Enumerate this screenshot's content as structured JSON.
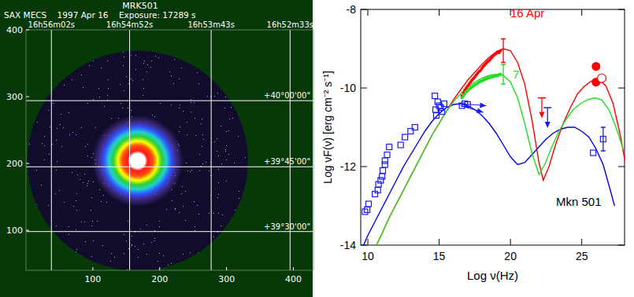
{
  "chart_data": [
    {
      "type": "image",
      "title": "MRK501",
      "subtitle": "SAX MECS    1997 Apr 16    Exposure: 17289 s",
      "xlim": [
        0,
        430
      ],
      "ylim": [
        40,
        400
      ],
      "xticks": [
        100,
        200,
        300,
        400
      ],
      "yticks": [
        100,
        200,
        300,
        400
      ],
      "grid": true,
      "ra_grid": [
        {
          "value": 38,
          "label": "16h56m02s"
        },
        {
          "value": 155,
          "label": "16h54m52s"
        },
        {
          "value": 277,
          "label": "16h53m43s"
        },
        {
          "value": 395,
          "label": "16h52m33s"
        }
      ],
      "dec_grid": [
        {
          "value": 294,
          "label": "+40°00'00\""
        },
        {
          "value": 195,
          "label": "+39°45'00\""
        },
        {
          "value": 98,
          "label": "+39°30'00\""
        }
      ],
      "source": {
        "x": 167,
        "y": 204
      },
      "field_radius": 165
    },
    {
      "type": "scatter",
      "xlabel": "Log ν(Hz)",
      "ylabel": "Log νF(ν) [erg cm⁻² s⁻¹]",
      "annotations": [
        "Mkn 501"
      ],
      "xlim": [
        9.5,
        28
      ],
      "ylim": [
        -14,
        -8
      ],
      "xticks": [
        10,
        15,
        20,
        25
      ],
      "yticks": [
        -14,
        -12,
        -10,
        -8
      ],
      "series": [
        {
          "type": "scatter",
          "color": "#1a1aff",
          "marker": "open-square",
          "x": [
            9.8,
            9.95,
            10.05,
            10.5,
            10.7,
            10.75,
            10.9,
            11.0,
            11.05,
            11.2,
            11.2,
            11.35,
            11.5,
            12.3,
            12.6,
            13.0,
            13.3,
            14.7,
            14.75,
            14.8,
            14.9,
            15.0,
            15.1,
            15.2,
            15.35,
            16.6,
            16.8,
            17.0,
            25.8,
            26.5
          ],
          "values": [
            -13.15,
            -13.1,
            -12.95,
            -12.7,
            -12.6,
            -12.45,
            -12.35,
            -12.25,
            -12.1,
            -11.95,
            -11.85,
            -11.7,
            -11.5,
            -11.45,
            -11.25,
            -11.1,
            -11.0,
            -10.2,
            -10.55,
            -10.7,
            -10.35,
            -10.45,
            -10.5,
            -10.6,
            -10.4,
            -10.45,
            -10.4,
            -10.42,
            -11.65,
            -11.3
          ]
        },
        {
          "name": "16 Apr",
          "type": "scatter",
          "color": "#ff0000",
          "marker": "dot",
          "x": [
            16.6,
            16.7,
            16.8,
            16.9,
            17.0,
            17.1,
            17.2,
            17.3,
            17.4,
            17.5,
            17.6,
            17.7,
            17.8,
            17.9,
            18.0,
            18.1,
            18.2,
            18.3,
            18.4,
            18.5,
            18.6,
            18.7,
            18.8,
            18.9,
            19.0,
            19.1,
            19.2,
            19.3
          ],
          "values": [
            -10.2,
            -10.12,
            -10.05,
            -10.0,
            -9.95,
            -9.9,
            -9.85,
            -9.8,
            -9.76,
            -9.72,
            -9.67,
            -9.62,
            -9.58,
            -9.55,
            -9.5,
            -9.45,
            -9.41,
            -9.37,
            -9.33,
            -9.3,
            -9.26,
            -9.22,
            -9.18,
            -9.15,
            -9.12,
            -9.08,
            -9.1,
            -9.05
          ]
        },
        {
          "name": "7",
          "type": "scatter",
          "color": "#22dd22",
          "marker": "dot",
          "x": [
            16.6,
            16.7,
            16.8,
            16.9,
            17.0,
            17.1,
            17.2,
            17.3,
            17.4,
            17.5,
            17.6,
            17.7,
            17.8,
            17.9,
            18.0,
            18.1,
            18.2,
            18.3,
            18.4,
            18.5,
            18.6,
            18.7,
            18.8,
            18.9,
            19.0,
            19.1,
            19.2,
            19.3
          ],
          "values": [
            -10.25,
            -10.2,
            -10.15,
            -10.1,
            -10.07,
            -10.03,
            -10.0,
            -9.97,
            -9.95,
            -9.92,
            -9.9,
            -9.88,
            -9.85,
            -9.83,
            -9.82,
            -9.8,
            -9.78,
            -9.77,
            -9.75,
            -9.74,
            -9.73,
            -9.72,
            -9.7,
            -9.7,
            -9.68,
            -9.69,
            -9.66,
            -9.65
          ]
        },
        {
          "type": "errorbar",
          "color": "#1a1aff",
          "x": [
            26.5
          ],
          "values": [
            -11.3
          ],
          "errors": [
            0.3
          ]
        },
        {
          "type": "errorbar",
          "color": "#ff0000",
          "x": [
            19.5
          ],
          "values": [
            -9.05
          ],
          "errors": [
            0.3
          ]
        },
        {
          "type": "errorbar",
          "color": "#22dd22",
          "x": [
            19.5
          ],
          "values": [
            -9.65
          ],
          "errors": [
            0.25
          ]
        },
        {
          "type": "upper_limit",
          "color": "#ff0000",
          "x": [
            22.2
          ],
          "values": [
            -10.25
          ]
        },
        {
          "type": "upper_limit",
          "color": "#1a1aff",
          "x": [
            22.6
          ],
          "values": [
            -10.5
          ]
        },
        {
          "type": "arrow",
          "color": "#1a1aff",
          "x": [
            16.5,
            18.3
          ],
          "values": [
            -10.4,
            -10.45
          ]
        },
        {
          "type": "arrow",
          "color": "#1a1aff",
          "x": [
            16.5,
            18.1
          ],
          "values": [
            -10.45,
            -10.62
          ]
        },
        {
          "type": "scatter",
          "color": "#ff0000",
          "marker": "filled-circle",
          "x": [
            26.0,
            26.0
          ],
          "values": [
            -9.45,
            -9.85
          ]
        },
        {
          "type": "scatter",
          "color": "#ff0000",
          "marker": "open-circle",
          "x": [
            26.4
          ],
          "values": [
            -9.75
          ]
        },
        {
          "type": "line",
          "color": "#0000ee",
          "x": [
            9.7,
            10,
            10.5,
            11,
            11.5,
            12,
            12.5,
            13,
            13.5,
            14,
            14.5,
            15,
            15.5,
            16,
            16.5,
            17,
            17.5,
            18,
            18.5,
            19,
            19.5,
            20,
            20.5,
            21,
            21.5,
            22,
            22.5,
            23,
            23.5,
            24,
            24.5,
            25,
            25.5,
            26,
            26.5,
            27,
            27.3
          ],
          "values": [
            -14,
            -13.75,
            -13.4,
            -13.05,
            -12.7,
            -12.35,
            -12.0,
            -11.7,
            -11.4,
            -11.1,
            -10.85,
            -10.65,
            -10.5,
            -10.42,
            -10.4,
            -10.45,
            -10.55,
            -10.7,
            -10.9,
            -11.15,
            -11.45,
            -11.75,
            -11.95,
            -11.9,
            -11.7,
            -11.5,
            -11.3,
            -11.15,
            -11.05,
            -11.0,
            -11.0,
            -11.1,
            -11.25,
            -11.55,
            -11.95,
            -12.6,
            -13.0
          ]
        },
        {
          "type": "line",
          "color": "#ff0000",
          "x": [
            10.6,
            11,
            11.5,
            12,
            12.5,
            13,
            13.5,
            14,
            14.5,
            15,
            15.5,
            16,
            16.5,
            17,
            17.5,
            18,
            18.5,
            19,
            19.5,
            20,
            20.5,
            21,
            21.5,
            22,
            22.3,
            22.7,
            23.2,
            23.7,
            24.2,
            24.7,
            25.2,
            25.7,
            26.2,
            26.7,
            27.2,
            27.7,
            28.2
          ],
          "values": [
            -14,
            -13.7,
            -13.3,
            -12.95,
            -12.6,
            -12.25,
            -11.9,
            -11.55,
            -11.2,
            -10.9,
            -10.6,
            -10.3,
            -10.05,
            -9.8,
            -9.6,
            -9.4,
            -9.22,
            -9.08,
            -9.0,
            -9.05,
            -9.35,
            -9.9,
            -10.8,
            -11.9,
            -12.35,
            -12.0,
            -11.4,
            -10.9,
            -10.5,
            -10.15,
            -9.95,
            -9.82,
            -9.78,
            -9.95,
            -10.4,
            -11.2,
            -12.2
          ]
        },
        {
          "type": "line",
          "color": "#22dd22",
          "x": [
            10.6,
            11,
            11.5,
            12,
            12.5,
            13,
            13.5,
            14,
            14.5,
            15,
            15.5,
            16,
            16.5,
            17,
            17.5,
            18,
            18.5,
            19,
            19.5,
            20,
            20.5,
            21,
            21.5,
            22,
            22.4,
            22.9,
            23.4,
            23.9,
            24.4,
            24.9,
            25.4,
            25.9,
            26.4,
            26.9,
            27.4,
            27.9
          ],
          "values": [
            -14,
            -13.7,
            -13.3,
            -12.95,
            -12.6,
            -12.25,
            -11.9,
            -11.55,
            -11.2,
            -10.9,
            -10.6,
            -10.35,
            -10.15,
            -9.98,
            -9.85,
            -9.75,
            -9.68,
            -9.65,
            -9.68,
            -9.85,
            -10.25,
            -10.9,
            -11.65,
            -12.2,
            -11.95,
            -11.5,
            -11.1,
            -10.8,
            -10.55,
            -10.4,
            -10.3,
            -10.25,
            -10.3,
            -10.55,
            -11.0,
            -11.55
          ]
        }
      ]
    }
  ]
}
